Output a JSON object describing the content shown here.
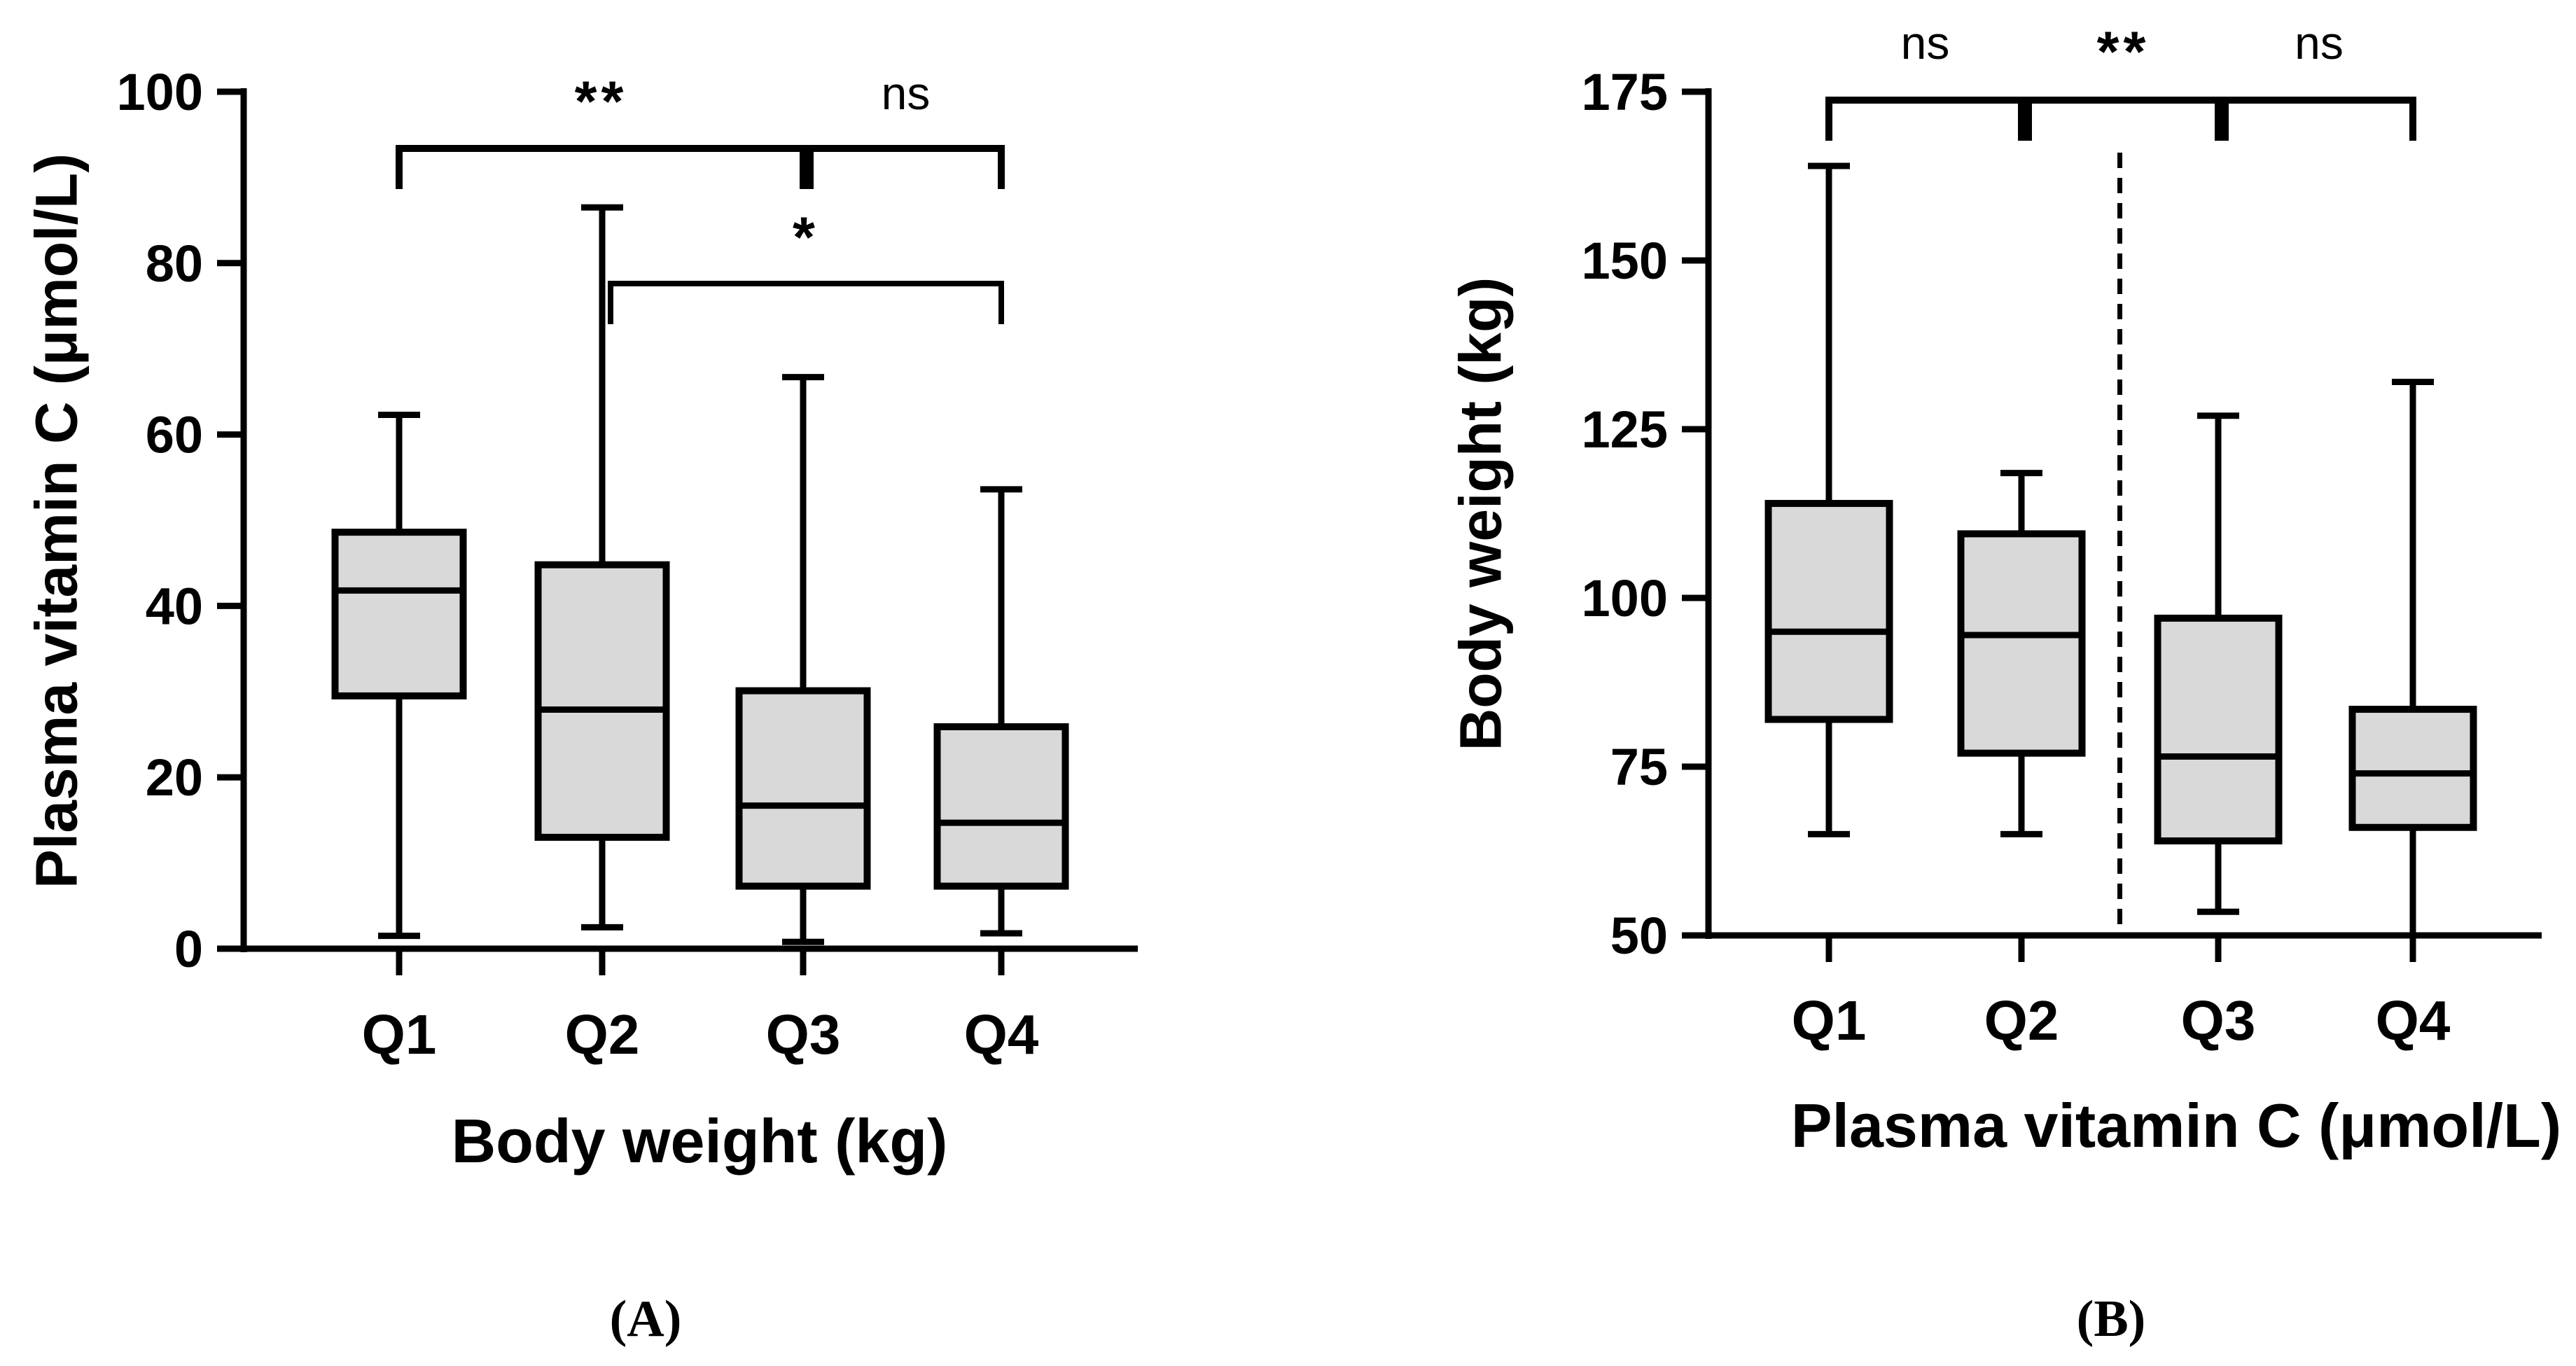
{
  "chart_data": [
    {
      "type": "box",
      "panel": "(A)",
      "xlabel": "Body weight (kg)",
      "ylabel": "Plasma vitamin C (μmol/L)",
      "ylim": [
        0,
        100
      ],
      "yticks": [
        "0",
        "20",
        "40",
        "60",
        "80",
        "100"
      ],
      "categories": [
        "Q1",
        "Q2",
        "Q3",
        "Q4"
      ],
      "box_fill": "#d9d9d9",
      "line_color": "#000000",
      "boxes": [
        {
          "category": "Q1",
          "min": 1.5,
          "q1": 29.5,
          "median": 41.8,
          "q3": 48.6,
          "max": 62.3
        },
        {
          "category": "Q2",
          "min": 2.5,
          "q1": 13.0,
          "median": 27.9,
          "q3": 44.8,
          "max": 86.5
        },
        {
          "category": "Q3",
          "min": 0.8,
          "q1": 7.3,
          "median": 16.7,
          "q3": 30.1,
          "max": 66.7
        },
        {
          "category": "Q4",
          "min": 1.8,
          "q1": 7.3,
          "median": 14.7,
          "q3": 25.9,
          "max": 53.6
        }
      ],
      "significance": [
        {
          "from": "Q1",
          "to": "Q3",
          "label": "**"
        },
        {
          "from": "Q3",
          "to": "Q4",
          "label": "ns"
        },
        {
          "from": "Q2",
          "to": "Q4",
          "label": "*"
        }
      ]
    },
    {
      "type": "box",
      "panel": "(B)",
      "xlabel": "Plasma vitamin C (μmol/L)",
      "ylabel": "Body weight (kg)",
      "ylim": [
        50,
        175
      ],
      "yticks": [
        "50",
        "75",
        "100",
        "125",
        "150",
        "175"
      ],
      "categories": [
        "Q1",
        "Q2",
        "Q3",
        "Q4"
      ],
      "box_fill": "#d9d9d9",
      "line_color": "#000000",
      "boxes": [
        {
          "category": "Q1",
          "min": 65,
          "q1": 82,
          "median": 95,
          "q3": 114,
          "max": 164
        },
        {
          "category": "Q2",
          "min": 65,
          "q1": 77,
          "median": 94.5,
          "q3": 109.5,
          "max": 118.5
        },
        {
          "category": "Q3",
          "min": 53.5,
          "q1": 64,
          "median": 76.5,
          "q3": 97,
          "max": 127
        },
        {
          "category": "Q4",
          "min": 50,
          "q1": 66,
          "median": 74,
          "q3": 83.5,
          "max": 132
        }
      ],
      "divider_between": [
        "Q2",
        "Q3"
      ],
      "significance": [
        {
          "from": "Q1",
          "to": "Q2",
          "label": "ns"
        },
        {
          "from": "Q2",
          "to": "Q3",
          "label": "**"
        },
        {
          "from": "Q3",
          "to": "Q4",
          "label": "ns"
        }
      ]
    }
  ]
}
